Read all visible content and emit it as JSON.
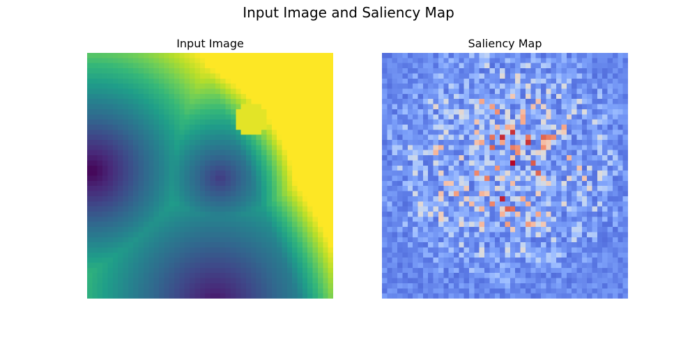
{
  "figure": {
    "title": "Input Image and Saliency Map"
  },
  "chart_data": [
    {
      "type": "heatmap",
      "title": "Input Image",
      "colormap": "viridis",
      "grid": [
        48,
        48
      ],
      "axes": "off",
      "field": "distance-like gradient: dark minimum at left-middle edge, moderate basin near center, dark basin at bottom-center, saturated yellow upper-right region with a bright circular blob"
    },
    {
      "type": "heatmap",
      "title": "Saliency Map",
      "colormap": "coolwarm",
      "grid": [
        48,
        48
      ],
      "axes": "off",
      "field": "noisy low values (blue) across the map with scattered high-valued (red) pixels concentrated toward the center"
    }
  ],
  "colors": {
    "viridis": [
      "#440154",
      "#482878",
      "#3e4989",
      "#31688e",
      "#26828e",
      "#1f9e89",
      "#35b779",
      "#6ece58",
      "#b5de2b",
      "#fde725"
    ],
    "coolwarm": [
      "#3b4cc0",
      "#5977e3",
      "#7b9ff9",
      "#9ebeff",
      "#c0d4f5",
      "#dddcdc",
      "#f2cbb7",
      "#f7ac8e",
      "#ee8468",
      "#d65244",
      "#b40426"
    ]
  }
}
